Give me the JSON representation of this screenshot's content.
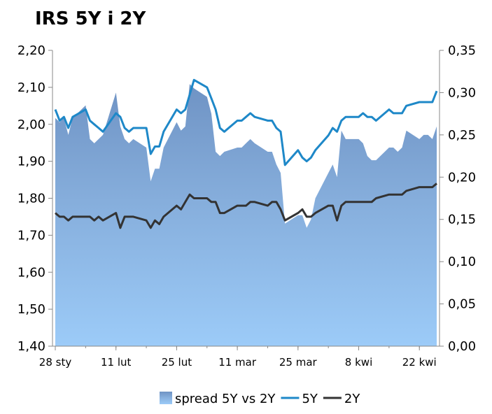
{
  "chart_data": {
    "type": "line",
    "title": "IRS 5Y i 2Y",
    "xlabel": "",
    "ylabel": "",
    "y_left": {
      "ylim": [
        1.4,
        2.2
      ],
      "ticks": [
        "1,40",
        "1,50",
        "1,60",
        "1,70",
        "1,80",
        "1,90",
        "2,00",
        "2,10",
        "2,20"
      ]
    },
    "y_right": {
      "ylim": [
        0.0,
        0.35
      ],
      "ticks": [
        "0,00",
        "0,05",
        "0,10",
        "0,15",
        "0,20",
        "0,25",
        "0,30",
        "0,35"
      ]
    },
    "x_tick_labels": [
      "28 sty",
      "11 lut",
      "25 lut",
      "11 mar",
      "25 mar",
      "8 kwi",
      "22 kwi"
    ],
    "x_tick_index": [
      0,
      14,
      28,
      42,
      56,
      70,
      84
    ],
    "x_days": [
      0,
      1,
      2,
      3,
      4,
      7,
      8,
      9,
      10,
      11,
      14,
      15,
      16,
      17,
      18,
      21,
      22,
      23,
      24,
      25,
      28,
      29,
      30,
      31,
      32,
      35,
      36,
      37,
      38,
      39,
      42,
      43,
      44,
      45,
      46,
      49,
      50,
      51,
      52,
      53,
      56,
      57,
      58,
      59,
      60,
      63,
      64,
      65,
      66,
      67,
      70,
      71,
      72,
      73,
      74,
      77,
      78,
      79,
      80,
      81,
      84,
      85,
      86,
      87,
      88
    ],
    "legend": "bottom",
    "grid": false,
    "series": [
      {
        "name": "spread 5Y vs 2Y",
        "type": "area",
        "axis": "right",
        "color": "#7FA9D8",
        "values": [
          0.27,
          0.265,
          0.27,
          0.25,
          0.27,
          0.285,
          0.245,
          0.24,
          0.245,
          0.25,
          0.3,
          0.26,
          0.245,
          0.24,
          0.245,
          0.235,
          0.195,
          0.21,
          0.21,
          0.235,
          0.265,
          0.255,
          0.26,
          0.31,
          0.305,
          0.295,
          0.275,
          0.23,
          0.225,
          0.23,
          0.235,
          0.235,
          0.24,
          0.245,
          0.24,
          0.23,
          0.23,
          0.215,
          0.205,
          0.145,
          0.155,
          0.155,
          0.14,
          0.15,
          0.175,
          0.205,
          0.215,
          0.2,
          0.255,
          0.245,
          0.245,
          0.24,
          0.225,
          0.22,
          0.22,
          0.235,
          0.235,
          0.23,
          0.235,
          0.255,
          0.245,
          0.25,
          0.25,
          0.245,
          0.26
        ]
      },
      {
        "name": "5Y",
        "type": "line",
        "axis": "left",
        "color": "#1E88C8",
        "values": [
          2.04,
          2.01,
          2.02,
          1.99,
          2.02,
          2.04,
          2.01,
          2.0,
          1.99,
          1.98,
          2.03,
          2.02,
          1.99,
          1.98,
          1.99,
          1.99,
          1.92,
          1.94,
          1.94,
          1.98,
          2.04,
          2.03,
          2.04,
          2.08,
          2.12,
          2.1,
          2.07,
          2.04,
          1.99,
          1.98,
          2.01,
          2.01,
          2.02,
          2.03,
          2.02,
          2.01,
          2.01,
          1.99,
          1.98,
          1.89,
          1.93,
          1.91,
          1.9,
          1.91,
          1.93,
          1.97,
          1.99,
          1.98,
          2.01,
          2.02,
          2.02,
          2.03,
          2.02,
          2.02,
          2.01,
          2.04,
          2.03,
          2.03,
          2.03,
          2.05,
          2.06,
          2.06,
          2.06,
          2.06,
          2.09
        ]
      },
      {
        "name": "2Y",
        "type": "line",
        "axis": "left",
        "color": "#333333",
        "values": [
          1.76,
          1.75,
          1.75,
          1.74,
          1.75,
          1.75,
          1.75,
          1.74,
          1.75,
          1.74,
          1.76,
          1.72,
          1.75,
          1.75,
          1.75,
          1.74,
          1.72,
          1.74,
          1.73,
          1.75,
          1.78,
          1.77,
          1.79,
          1.81,
          1.8,
          1.8,
          1.79,
          1.79,
          1.76,
          1.76,
          1.78,
          1.78,
          1.78,
          1.79,
          1.79,
          1.78,
          1.79,
          1.79,
          1.77,
          1.74,
          1.76,
          1.77,
          1.75,
          1.75,
          1.76,
          1.78,
          1.78,
          1.74,
          1.78,
          1.79,
          1.79,
          1.79,
          1.79,
          1.79,
          1.8,
          1.81,
          1.81,
          1.81,
          1.81,
          1.82,
          1.83,
          1.83,
          1.83,
          1.83,
          1.84
        ]
      }
    ]
  }
}
